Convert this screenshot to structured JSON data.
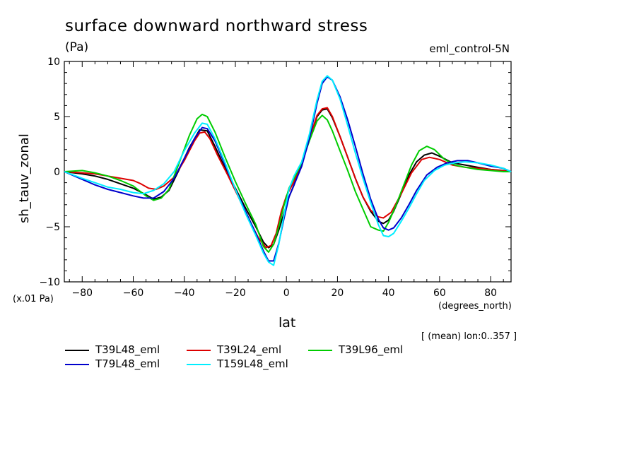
{
  "chart_data": {
    "type": "line",
    "title": "surface downward northward stress",
    "units": "(Pa)",
    "case_label": "eml_control-5N",
    "ylabel": "sh_tauv_zonal",
    "xlabel": "lat",
    "x_units": "(degrees_north)",
    "y_scale_note": "(x.01 Pa)",
    "subset_note": "[ (mean) lon:0..357 ]",
    "xlim": [
      -87,
      88
    ],
    "ylim": [
      -10,
      10
    ],
    "x_ticks": [
      -80,
      -60,
      -40,
      -20,
      0,
      20,
      40,
      60,
      80
    ],
    "x_tick_labels": [
      "−80",
      "−60",
      "−40",
      "−20",
      "0",
      "20",
      "40",
      "60",
      "80"
    ],
    "y_ticks": [
      -10,
      -5,
      0,
      5,
      10
    ],
    "y_tick_labels": [
      "−10",
      "−5",
      "0",
      "5",
      "10"
    ],
    "grid": false,
    "legend_position": "bottom",
    "series": [
      {
        "name": "T39L48_eml",
        "color": "#000000",
        "x": [
          -87,
          -80,
          -75,
          -70,
          -65,
          -60,
          -55,
          -52,
          -49,
          -46,
          -42,
          -38,
          -34,
          -31,
          -28,
          -24,
          -20,
          -16,
          -12,
          -9,
          -7,
          -5,
          -3,
          -1,
          1,
          3,
          6,
          9,
          12,
          14,
          16,
          18,
          21,
          24,
          27,
          30,
          33,
          36,
          38,
          40,
          42,
          45,
          48,
          51,
          54,
          57,
          60,
          65,
          70,
          75,
          80,
          85,
          88
        ],
        "y": [
          0,
          -0.2,
          -0.4,
          -0.7,
          -1.1,
          -1.5,
          -2.1,
          -2.5,
          -2.3,
          -1.7,
          0.2,
          2.2,
          3.8,
          3.7,
          2.3,
          0.3,
          -1.5,
          -3.3,
          -5.0,
          -6.4,
          -6.9,
          -6.6,
          -5.3,
          -3.8,
          -2.3,
          -1.2,
          0.8,
          3.0,
          5.0,
          5.6,
          5.7,
          4.9,
          3.2,
          1.3,
          -0.6,
          -2.3,
          -3.6,
          -4.5,
          -4.7,
          -4.4,
          -3.6,
          -2.0,
          -0.3,
          0.9,
          1.5,
          1.7,
          1.4,
          0.8,
          0.6,
          0.4,
          0.2,
          0.1,
          0
        ]
      },
      {
        "name": "T39L24_eml",
        "color": "#dd0000",
        "x": [
          -87,
          -80,
          -75,
          -70,
          -65,
          -60,
          -57,
          -54,
          -51,
          -48,
          -44,
          -40,
          -36,
          -34,
          -32,
          -30,
          -27,
          -23,
          -19,
          -15,
          -11,
          -8,
          -6,
          -4,
          -2,
          0,
          3,
          6,
          9,
          12,
          14,
          16,
          18,
          21,
          24,
          27,
          30,
          33,
          36,
          38,
          41,
          45,
          49,
          53,
          56,
          60,
          65,
          70,
          75,
          80,
          88
        ],
        "y": [
          0,
          -0.1,
          -0.2,
          -0.4,
          -0.6,
          -0.8,
          -1.1,
          -1.5,
          -1.6,
          -1.3,
          -0.5,
          1.0,
          2.8,
          3.5,
          3.6,
          3.0,
          1.5,
          -0.3,
          -2.2,
          -4.2,
          -6.0,
          -6.9,
          -6.7,
          -5.6,
          -3.6,
          -2.2,
          -0.9,
          0.9,
          3.0,
          5.1,
          5.7,
          5.8,
          5.0,
          3.2,
          1.3,
          -0.6,
          -2.3,
          -3.5,
          -4.1,
          -4.2,
          -3.7,
          -2.0,
          -0.1,
          1.1,
          1.3,
          1.1,
          0.6,
          0.4,
          0.3,
          0.2,
          0
        ]
      },
      {
        "name": "T39L96_eml",
        "color": "#00cc00",
        "x": [
          -87,
          -80,
          -75,
          -70,
          -65,
          -60,
          -55,
          -52,
          -49,
          -46,
          -42,
          -38,
          -35,
          -33,
          -31,
          -28,
          -24,
          -20,
          -16,
          -12,
          -9,
          -7,
          -5,
          -3,
          -1,
          1,
          3,
          6,
          9,
          12,
          14,
          16,
          18,
          21,
          24,
          27,
          30,
          33,
          36,
          38,
          40,
          43,
          46,
          49,
          52,
          55,
          58,
          62,
          66,
          70,
          75,
          80,
          85,
          88
        ],
        "y": [
          0,
          0.1,
          -0.1,
          -0.4,
          -0.8,
          -1.3,
          -2.2,
          -2.6,
          -2.4,
          -1.6,
          0.8,
          3.3,
          4.8,
          5.2,
          5.0,
          3.6,
          1.3,
          -0.9,
          -2.9,
          -4.8,
          -6.8,
          -7.3,
          -6.6,
          -5.0,
          -3.1,
          -1.5,
          -0.6,
          0.8,
          2.8,
          4.6,
          5.1,
          4.7,
          3.7,
          1.9,
          0.1,
          -1.8,
          -3.4,
          -5.0,
          -5.3,
          -5.4,
          -4.6,
          -3.0,
          -1.2,
          0.6,
          1.9,
          2.3,
          2.0,
          1.1,
          0.6,
          0.4,
          0.2,
          0.1,
          0.0,
          0
        ]
      },
      {
        "name": "T79L48_eml",
        "color": "#0000cc",
        "x": [
          -87,
          -80,
          -75,
          -70,
          -65,
          -60,
          -56,
          -52,
          -48,
          -44,
          -40,
          -36,
          -33,
          -31,
          -28,
          -24,
          -20,
          -16,
          -12,
          -9,
          -7,
          -5,
          -3,
          -1,
          1,
          3,
          6,
          9,
          12,
          14,
          16,
          18,
          21,
          24,
          27,
          30,
          33,
          36,
          38,
          40,
          42,
          45,
          48,
          51,
          55,
          59,
          63,
          67,
          71,
          75,
          80,
          85,
          88
        ],
        "y": [
          0,
          -0.7,
          -1.2,
          -1.6,
          -1.9,
          -2.2,
          -2.4,
          -2.4,
          -1.8,
          -0.6,
          1.2,
          3.0,
          4.0,
          3.9,
          2.8,
          0.6,
          -1.6,
          -3.6,
          -5.6,
          -7.2,
          -8.1,
          -8.1,
          -6.5,
          -4.3,
          -2.3,
          -1.2,
          0.5,
          3.0,
          6.2,
          8.0,
          8.6,
          8.3,
          6.8,
          4.7,
          2.3,
          -0.2,
          -2.5,
          -4.3,
          -5.1,
          -5.3,
          -5.1,
          -4.2,
          -3.0,
          -1.7,
          -0.3,
          0.4,
          0.8,
          1.0,
          1.0,
          0.8,
          0.5,
          0.3,
          0
        ]
      },
      {
        "name": "T159L48_eml",
        "color": "#00eeff",
        "x": [
          -87,
          -80,
          -75,
          -70,
          -65,
          -60,
          -56,
          -52,
          -48,
          -44,
          -40,
          -36,
          -33,
          -31,
          -28,
          -24,
          -20,
          -16,
          -12,
          -9,
          -7,
          -5,
          -3,
          -1,
          1,
          3,
          6,
          9,
          12,
          14,
          16,
          18,
          21,
          24,
          27,
          30,
          33,
          36,
          38,
          40,
          42,
          45,
          48,
          51,
          54,
          58,
          62,
          66,
          70,
          75,
          80,
          85,
          88
        ],
        "y": [
          0,
          -0.6,
          -1.0,
          -1.4,
          -1.6,
          -1.9,
          -2.0,
          -1.7,
          -1.1,
          0.0,
          1.9,
          3.5,
          4.4,
          4.3,
          3.0,
          0.8,
          -1.6,
          -3.8,
          -5.8,
          -7.4,
          -8.2,
          -8.5,
          -6.6,
          -4.0,
          -1.6,
          -0.4,
          0.9,
          3.4,
          6.5,
          8.2,
          8.7,
          8.3,
          6.6,
          4.2,
          1.7,
          -0.6,
          -2.8,
          -4.8,
          -5.8,
          -5.9,
          -5.6,
          -4.5,
          -3.3,
          -2.0,
          -0.8,
          0.1,
          0.6,
          0.8,
          0.9,
          0.8,
          0.6,
          0.3,
          0
        ]
      }
    ]
  }
}
